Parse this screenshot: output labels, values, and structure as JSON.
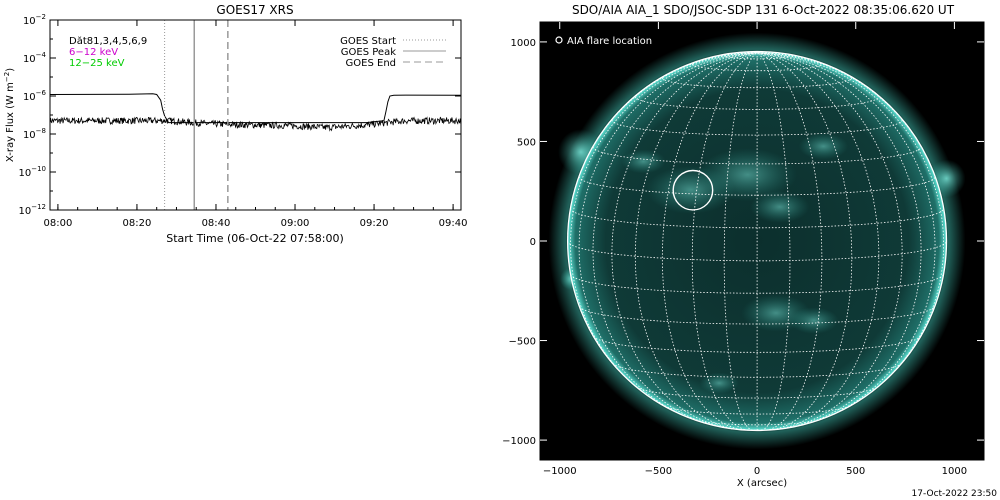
{
  "footer_timestamp": "17-Oct-2022 23:50",
  "colors": {
    "background": "#ffffff",
    "axes": "#000000",
    "low_channel": "#000000",
    "high_channel": "#000000",
    "markers": "#999999",
    "legend_low": "#cc00cc",
    "legend_high": "#00cc00",
    "sun_disk": "#0e3634",
    "sun_glow": "#48d9c9",
    "grid": "#ffffff",
    "image_bg": "#000000"
  },
  "chart_data": [
    {
      "type": "line",
      "title": "GOES17 XRS",
      "xlabel": "Start Time (06-Oct-22 07:58:00)",
      "ylabel_main": "X-ray Flux (W m",
      "ylabel_exp": "−2",
      "ylabel_close": ")",
      "x_ticks": [
        "08:00",
        "08:20",
        "08:40",
        "09:00",
        "09:20",
        "09:40"
      ],
      "x_tick_minutes": [
        2,
        22,
        42,
        62,
        82,
        102
      ],
      "xlim_minutes": [
        0,
        104
      ],
      "y_log": true,
      "ylim": [
        1e-12,
        0.01
      ],
      "y_ticks": [
        {
          "value": 1e-12,
          "base": "10",
          "exp": "−12"
        },
        {
          "value": 1e-10,
          "base": "10",
          "exp": "−10"
        },
        {
          "value": 1e-08,
          "base": "10",
          "exp": "−8"
        },
        {
          "value": 1e-06,
          "base": "10",
          "exp": "−6"
        },
        {
          "value": 0.0001,
          "base": "10",
          "exp": "−4"
        },
        {
          "value": 0.01,
          "base": "10",
          "exp": "−2"
        }
      ],
      "annotations": {
        "dataset": "Dăt81,3,4,5,6,9",
        "low_band": "6−12 keV",
        "high_band": "12−25 keV"
      },
      "legend": {
        "placement": "top-right",
        "items": [
          {
            "label": "GOES Start",
            "style": "dotted"
          },
          {
            "label": "GOES Peak",
            "style": "solid"
          },
          {
            "label": "GOES End",
            "style": "dashed"
          }
        ]
      },
      "markers_minutes": {
        "start": 29,
        "peak": 36.5,
        "end": 45
      },
      "series": [
        {
          "name": "6−12 keV",
          "x": [
            0,
            10,
            20,
            26,
            27,
            28,
            28.5,
            29,
            29.5,
            30,
            40,
            50,
            60,
            70,
            80,
            84.5,
            85,
            85.5,
            86,
            87,
            90,
            104
          ],
          "values": [
            1.2e-06,
            1.22e-06,
            1.25e-06,
            1.3e-06,
            1.2e-06,
            6e-07,
            2e-07,
            9e-08,
            6e-08,
            4e-08,
            4e-08,
            4e-08,
            4e-08,
            4e-08,
            4e-08,
            5e-08,
            1.5e-07,
            5e-07,
            1e-06,
            1.1e-06,
            1.12e-06,
            1.1e-06
          ]
        },
        {
          "name": "12−25 keV",
          "x": [
            0,
            10,
            20,
            30,
            40,
            50,
            60,
            70,
            80,
            90,
            104
          ],
          "values": [
            5e-08,
            5e-08,
            5e-08,
            5e-08,
            3.5e-08,
            3e-08,
            2.8e-08,
            2.2e-08,
            3e-08,
            5e-08,
            5e-08
          ],
          "noisy": true
        }
      ]
    },
    {
      "type": "image",
      "title": "SDO/AIA AIA_1 SDO/JSOC-SDP 131  6-Oct-2022 08:35:06.620 UT",
      "xlabel": "X (arcsec)",
      "legend_label": "AIA flare location",
      "xlim": [
        -1100,
        1150
      ],
      "ylim": [
        -1100,
        1100
      ],
      "x_ticks": [
        -1000,
        -500,
        0,
        500,
        1000
      ],
      "x_tick_labels": [
        "−1000",
        "−500",
        "0",
        "500",
        "1000"
      ],
      "y_ticks": [
        -1000,
        -500,
        0,
        500,
        1000
      ],
      "y_tick_labels": [
        "−1000",
        "−500",
        "0",
        "500",
        "1000"
      ],
      "solar_radius_arcsec": 960,
      "grid_spacing_deg": 10,
      "flare_location_arcsec": [
        -325,
        255
      ],
      "flare_circle_radius_arcsec": 100
    }
  ]
}
